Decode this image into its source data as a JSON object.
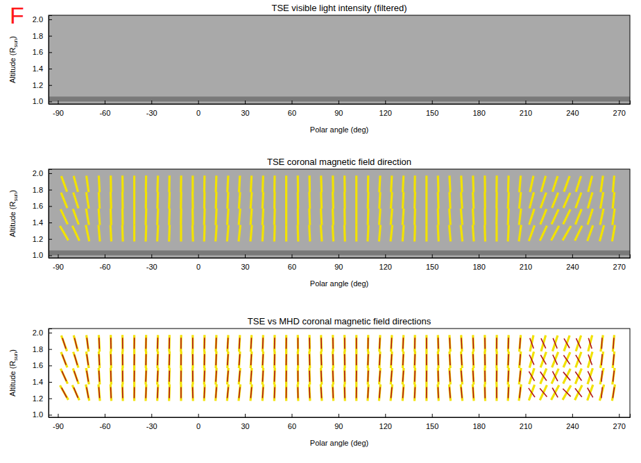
{
  "panel_label": "F",
  "chart_data": [
    {
      "type": "image",
      "title": "TSE visible light intensity (filtered)",
      "xlabel": "Polar angle (deg)",
      "ylabel": [
        "Altitude (R",
        "sun",
        ")"
      ],
      "xlim": [
        -96,
        277
      ],
      "xticks": [
        -90,
        -60,
        -30,
        0,
        30,
        60,
        90,
        120,
        150,
        180,
        210,
        240,
        270
      ],
      "ylim": [
        0.97,
        2.05
      ],
      "yticks": [
        {
          "value": 1,
          "label": "1.0"
        },
        1.2,
        1.4,
        1.6,
        1.8,
        {
          "value": 2,
          "label": "2.0"
        }
      ]
    },
    {
      "type": "image_vector",
      "title": "TSE coronal magnetic field direction",
      "xlabel": "Polar angle (deg)",
      "ylabel": [
        "Altitude (R",
        "sun",
        ")"
      ],
      "xlim": [
        -96,
        277
      ],
      "xticks": [
        -90,
        -60,
        -30,
        0,
        30,
        60,
        90,
        120,
        150,
        180,
        210,
        240,
        270
      ],
      "ylim": [
        0.97,
        2.05
      ],
      "yticks": [
        {
          "value": 1,
          "label": "1.0"
        },
        1.2,
        1.4,
        1.6,
        1.8,
        {
          "value": 2,
          "label": "2.0"
        }
      ],
      "x": [
        -86,
        -78.5,
        -71,
        -63.5,
        -56,
        -48.5,
        -41,
        -33.5,
        -26,
        -18.5,
        -11,
        -3.5,
        4,
        11.5,
        19,
        26.5,
        34,
        41.5,
        49,
        56.5,
        64,
        71.5,
        79,
        86.5,
        94,
        101.5,
        109,
        116.5,
        124,
        131.5,
        139,
        146.5,
        154,
        161.5,
        169,
        176.5,
        184,
        191.5,
        199,
        206.5,
        214,
        221.5,
        229,
        236.5,
        244,
        251.5,
        259,
        266.5
      ],
      "y": [
        1.27,
        1.47,
        1.67,
        1.87
      ],
      "series": [
        {
          "color": "#f2e200",
          "values": [
            [
              -30,
              -25,
              -12,
              -5,
              -3,
              -2,
              0,
              2,
              3,
              2,
              0,
              -2,
              2,
              4,
              5,
              6,
              5,
              3,
              2,
              0,
              -2,
              -3,
              -4,
              -3,
              -2,
              0,
              3,
              5,
              6,
              4,
              2,
              0,
              -3,
              -5,
              -6,
              -4,
              -2,
              0,
              3,
              8,
              20,
              25,
              28,
              30,
              26,
              20,
              15,
              10
            ],
            [
              -25,
              -20,
              -10,
              -4,
              -2,
              -1,
              0,
              2,
              3,
              2,
              1,
              -1,
              2,
              3,
              4,
              5,
              4,
              3,
              2,
              0,
              -1,
              -2,
              -3,
              -2,
              -1,
              0,
              2,
              4,
              5,
              4,
              2,
              0,
              -2,
              -4,
              -5,
              -3,
              -1,
              1,
              3,
              7,
              18,
              22,
              25,
              26,
              22,
              18,
              12,
              8
            ],
            [
              -22,
              -18,
              -9,
              -3,
              -2,
              -1,
              0,
              1,
              2,
              2,
              1,
              -1,
              1,
              2,
              3,
              4,
              4,
              3,
              1,
              0,
              -1,
              -2,
              -2,
              -2,
              -1,
              0,
              2,
              3,
              4,
              3,
              2,
              0,
              -2,
              -3,
              -4,
              -3,
              -1,
              1,
              3,
              6,
              15,
              20,
              22,
              24,
              20,
              16,
              10,
              6
            ],
            [
              -20,
              -15,
              -8,
              -3,
              -1,
              -1,
              0,
              1,
              2,
              1,
              1,
              0,
              1,
              2,
              3,
              3,
              3,
              2,
              1,
              0,
              -1,
              -1,
              -2,
              -1,
              -1,
              0,
              1,
              3,
              3,
              3,
              1,
              0,
              -2,
              -3,
              -3,
              -2,
              -1,
              1,
              2,
              5,
              12,
              16,
              18,
              20,
              18,
              14,
              8,
              5
            ]
          ]
        }
      ]
    },
    {
      "type": "vector",
      "title": "TSE vs MHD coronal magnetic field directions",
      "xlabel": "Polar angle (deg)",
      "ylabel": [
        "Altitude (R",
        "sun",
        ")"
      ],
      "xlim": [
        -96,
        277
      ],
      "xticks": [
        -90,
        -60,
        -30,
        0,
        30,
        60,
        90,
        120,
        150,
        180,
        210,
        240,
        270
      ],
      "ylim": [
        0.97,
        2.05
      ],
      "yticks": [
        {
          "value": 1,
          "label": "1.0"
        },
        1.2,
        1.4,
        1.6,
        1.8,
        {
          "value": 2,
          "label": "2.0"
        }
      ],
      "x": [
        -86,
        -78.5,
        -71,
        -63.5,
        -56,
        -48.5,
        -41,
        -33.5,
        -26,
        -18.5,
        -11,
        -3.5,
        4,
        11.5,
        19,
        26.5,
        34,
        41.5,
        49,
        56.5,
        64,
        71.5,
        79,
        86.5,
        94,
        101.5,
        109,
        116.5,
        124,
        131.5,
        139,
        146.5,
        154,
        161.5,
        169,
        176.5,
        184,
        191.5,
        199,
        206.5,
        214,
        221.5,
        229,
        236.5,
        244,
        251.5,
        259,
        266.5
      ],
      "y": [
        1.27,
        1.47,
        1.67,
        1.87
      ],
      "series": [
        {
          "color": "#f2e200",
          "values": [
            [
              -30,
              -25,
              -12,
              -5,
              -3,
              -2,
              0,
              2,
              3,
              2,
              0,
              -2,
              2,
              4,
              5,
              6,
              5,
              3,
              2,
              0,
              -2,
              -3,
              -4,
              -3,
              -2,
              0,
              3,
              5,
              6,
              4,
              2,
              0,
              -3,
              -5,
              -6,
              -4,
              -2,
              0,
              3,
              8,
              20,
              25,
              28,
              30,
              26,
              20,
              15,
              10
            ],
            [
              -25,
              -20,
              -10,
              -4,
              -2,
              -1,
              0,
              2,
              3,
              2,
              1,
              -1,
              2,
              3,
              4,
              5,
              4,
              3,
              2,
              0,
              -1,
              -2,
              -3,
              -2,
              -1,
              0,
              2,
              4,
              5,
              4,
              2,
              0,
              -2,
              -4,
              -5,
              -3,
              -1,
              1,
              3,
              7,
              18,
              22,
              25,
              26,
              22,
              18,
              12,
              8
            ],
            [
              -22,
              -18,
              -9,
              -3,
              -2,
              -1,
              0,
              1,
              2,
              2,
              1,
              -1,
              1,
              2,
              3,
              4,
              4,
              3,
              1,
              0,
              -1,
              -2,
              -2,
              -2,
              -1,
              0,
              2,
              3,
              4,
              3,
              2,
              0,
              -2,
              -3,
              -4,
              -3,
              -1,
              1,
              3,
              6,
              15,
              20,
              22,
              24,
              20,
              16,
              10,
              6
            ],
            [
              -20,
              -15,
              -8,
              -3,
              -1,
              -1,
              0,
              1,
              2,
              1,
              1,
              0,
              1,
              2,
              3,
              3,
              3,
              2,
              1,
              0,
              -1,
              -1,
              -2,
              -1,
              -1,
              0,
              1,
              3,
              3,
              3,
              1,
              0,
              -2,
              -3,
              -3,
              -2,
              -1,
              1,
              2,
              5,
              12,
              16,
              18,
              20,
              18,
              14,
              8,
              5
            ]
          ]
        },
        {
          "color": "#b0141c",
          "values": [
            [
              -28,
              -22,
              -10,
              -4,
              -2,
              -1,
              1,
              2,
              2,
              1,
              0,
              -1,
              3,
              4,
              6,
              6,
              5,
              4,
              2,
              1,
              -1,
              -2,
              -3,
              -2,
              -1,
              1,
              3,
              4,
              5,
              4,
              3,
              1,
              -2,
              -4,
              -5,
              -3,
              -1,
              0,
              2,
              5,
              -35,
              -40,
              -30,
              -45,
              -38,
              -30,
              5,
              8
            ],
            [
              -24,
              -18,
              -9,
              -3,
              -1,
              0,
              1,
              2,
              2,
              1,
              0,
              0,
              2,
              3,
              5,
              5,
              4,
              3,
              2,
              1,
              0,
              -1,
              -2,
              -2,
              -1,
              1,
              2,
              4,
              4,
              4,
              2,
              1,
              -1,
              -3,
              -4,
              -3,
              -1,
              0,
              2,
              4,
              -30,
              -35,
              -28,
              -40,
              -35,
              -25,
              4,
              6
            ],
            [
              -20,
              -16,
              -8,
              -3,
              -1,
              0,
              1,
              1,
              2,
              1,
              0,
              0,
              1,
              2,
              4,
              4,
              3,
              3,
              1,
              1,
              0,
              -1,
              -2,
              -1,
              -1,
              0,
              2,
              3,
              3,
              3,
              2,
              0,
              -1,
              -3,
              -3,
              -2,
              -1,
              0,
              2,
              3,
              -25,
              -30,
              -25,
              -35,
              -30,
              -20,
              3,
              5
            ],
            [
              -18,
              -14,
              -7,
              -2,
              -1,
              0,
              1,
              1,
              1,
              1,
              0,
              0,
              1,
              2,
              3,
              3,
              3,
              2,
              1,
              1,
              0,
              -1,
              -1,
              -1,
              0,
              0,
              1,
              2,
              3,
              2,
              1,
              0,
              -1,
              -2,
              -3,
              -2,
              -1,
              0,
              1,
              3,
              -20,
              -25,
              -22,
              -30,
              -25,
              -18,
              2,
              4
            ]
          ]
        }
      ]
    }
  ]
}
